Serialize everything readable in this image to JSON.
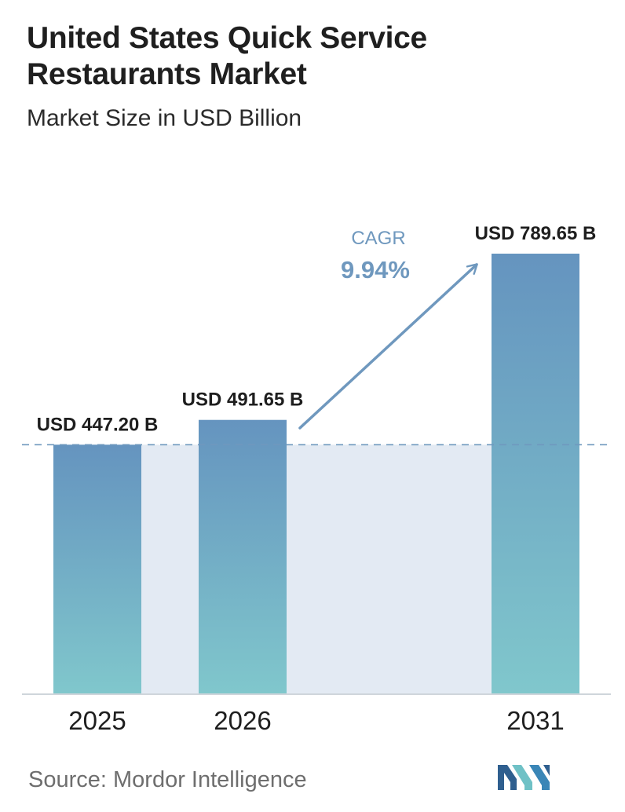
{
  "header": {
    "title": "United States Quick Service Restaurants Market",
    "subtitle": "Market Size in USD Billion"
  },
  "chart_data": {
    "type": "bar",
    "categories": [
      "2025",
      "2026",
      "2031"
    ],
    "values": [
      447.2,
      491.65,
      789.65
    ],
    "value_labels": [
      "USD 447.20 B",
      "USD 491.65 B",
      "USD 789.65 B"
    ],
    "title": "United States Quick Service Restaurants Market",
    "subtitle": "Market Size in USD Billion",
    "xlabel": "",
    "ylabel": "",
    "grid": false,
    "annotation": {
      "label": "CAGR",
      "value": "9.94%"
    },
    "reference_line_value": 447.2
  },
  "footer": {
    "source": "Source:  Mordor Intelligence"
  },
  "colors": {
    "bar_top": "#6594bf",
    "bar_bottom": "#80c7cc",
    "band": "#e3eaf3",
    "cagr": "#6f98be",
    "reference_line": "#6f98be",
    "axis": "#cfd5db",
    "logo_dark": "#2f5f8f",
    "logo_light": "#6fc1c6"
  }
}
